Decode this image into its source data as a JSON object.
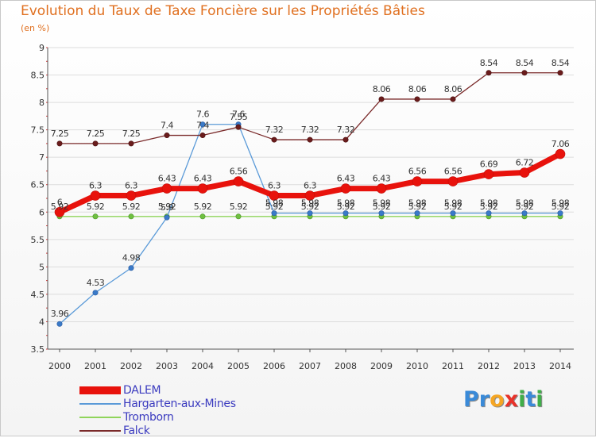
{
  "header": {
    "title": "Evolution du Taux de Taxe Foncière sur les Propriétés Bâties",
    "subtitle": "(en %)"
  },
  "logo": {
    "text": "Proxiti",
    "letters": [
      {
        "ch": "P",
        "color": "#3a8ad8"
      },
      {
        "ch": "r",
        "color": "#3a8ad8"
      },
      {
        "ch": "o",
        "color": "#f5a623"
      },
      {
        "ch": "x",
        "color": "#e8322a"
      },
      {
        "ch": "i",
        "color": "#3fae49"
      },
      {
        "ch": "t",
        "color": "#3a8ad8"
      },
      {
        "ch": "i",
        "color": "#3fae49"
      }
    ]
  },
  "chart_data": {
    "type": "line",
    "title": "Evolution du Taux de Taxe Foncière sur les Propriétés Bâties",
    "ylabel": "(en %)",
    "xlabel": "",
    "x": [
      "2000",
      "2001",
      "2002",
      "2003",
      "2004",
      "2005",
      "2006",
      "2007",
      "2008",
      "2009",
      "2010",
      "2011",
      "2012",
      "2013",
      "2014"
    ],
    "ylim": [
      3.5,
      9
    ],
    "yticks": [
      "3.5",
      "4",
      "4.5",
      "5",
      "5.5",
      "6",
      "6.5",
      "7",
      "7.5",
      "8",
      "8.5",
      "9"
    ],
    "grid": "horizontal",
    "legend_position": "bottom-left",
    "series": [
      {
        "name": "DALEM",
        "color": "#e8120c",
        "values": [
          6,
          6.3,
          6.3,
          6.43,
          6.43,
          6.56,
          6.3,
          6.3,
          6.43,
          6.43,
          6.56,
          6.56,
          6.69,
          6.72,
          7.06
        ],
        "labels": [
          "6",
          "6.3",
          "6.3",
          "6.43",
          "6.43",
          "6.56",
          "6.3",
          "6.3",
          "6.43",
          "6.43",
          "6.56",
          "6.56",
          "6.69",
          "6.72",
          "7.06"
        ]
      },
      {
        "name": "Hargarten-aux-Mines",
        "color": "#5a9ad8",
        "values": [
          3.96,
          4.53,
          4.98,
          5.9,
          7.6,
          7.6,
          5.98,
          5.98,
          5.98,
          5.98,
          5.98,
          5.98,
          5.98,
          5.98,
          5.98
        ],
        "labels": [
          "3.96",
          "4.53",
          "4.98",
          "5.9",
          "7.6",
          "7.6",
          "5.98",
          "5.98",
          "5.98",
          "5.98",
          "5.98",
          "5.98",
          "5.98",
          "5.98",
          "5.98"
        ]
      },
      {
        "name": "Tromborn",
        "color": "#8fd45a",
        "values": [
          5.92,
          5.92,
          5.92,
          5.92,
          5.92,
          5.92,
          5.92,
          5.92,
          5.92,
          5.92,
          5.92,
          5.92,
          5.92,
          5.92,
          5.92
        ],
        "labels": [
          "5.92",
          "5.92",
          "5.92",
          "5.92",
          "5.92",
          "5.92",
          "5.92",
          "5.92",
          "5.92",
          "5.92",
          "5.92",
          "5.92",
          "5.92",
          "5.92",
          "5.92"
        ]
      },
      {
        "name": "Falck",
        "color": "#7a2a2a",
        "values": [
          7.25,
          7.25,
          7.25,
          7.4,
          7.4,
          7.55,
          7.32,
          7.32,
          7.32,
          8.06,
          8.06,
          8.06,
          8.54,
          8.54,
          8.54
        ],
        "labels": [
          "7.25",
          "7.25",
          "7.25",
          "7.4",
          "7.4",
          "7.55",
          "7.32",
          "7.32",
          "7.32",
          "8.06",
          "8.06",
          "8.06",
          "8.54",
          "8.54",
          "8.54"
        ]
      }
    ]
  }
}
